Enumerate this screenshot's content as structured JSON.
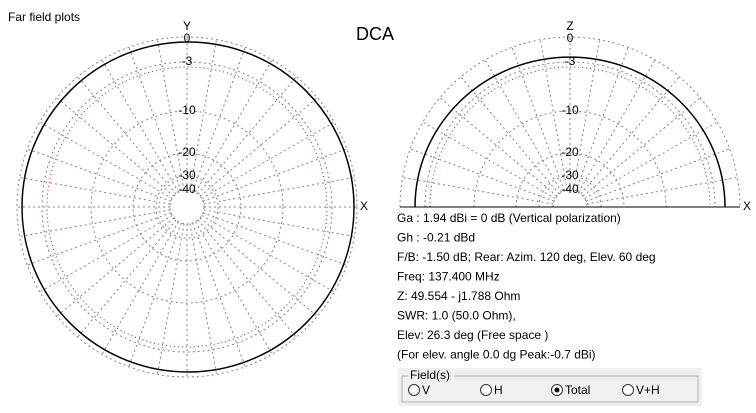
{
  "window": {
    "title": "Far field plots",
    "plot_title": "DCA"
  },
  "azimuth_plot": {
    "axis_top": "Y",
    "axis_right": "X",
    "ring_labels": [
      "0",
      "-3",
      "-10",
      "-20",
      "-30",
      "-40"
    ]
  },
  "elevation_plot": {
    "axis_top": "Z",
    "axis_right": "X",
    "ring_labels": [
      "0",
      "-3",
      "-10",
      "-20",
      "-30",
      "-40"
    ]
  },
  "results": [
    "Ga : 1.94 dBi = 0 dB  (Vertical polarization)",
    "Gh : -0.21 dBd",
    "F/B: -1.50 dB; Rear: Azim. 120 deg,  Elev. 60 deg",
    "Freq: 137.400 MHz",
    "Z: 49.554 - j1.788 Ohm",
    "SWR: 1.0 (50.0 Ohm),",
    "Elev: 26.3 deg (Free space )",
    "(For elev. angle 0.0 dg Peak:-0.7 dBi)"
  ],
  "field_group": {
    "label": "Field(s)",
    "options": [
      "V",
      "H",
      "Total",
      "V+H"
    ],
    "selected": "Total"
  }
}
